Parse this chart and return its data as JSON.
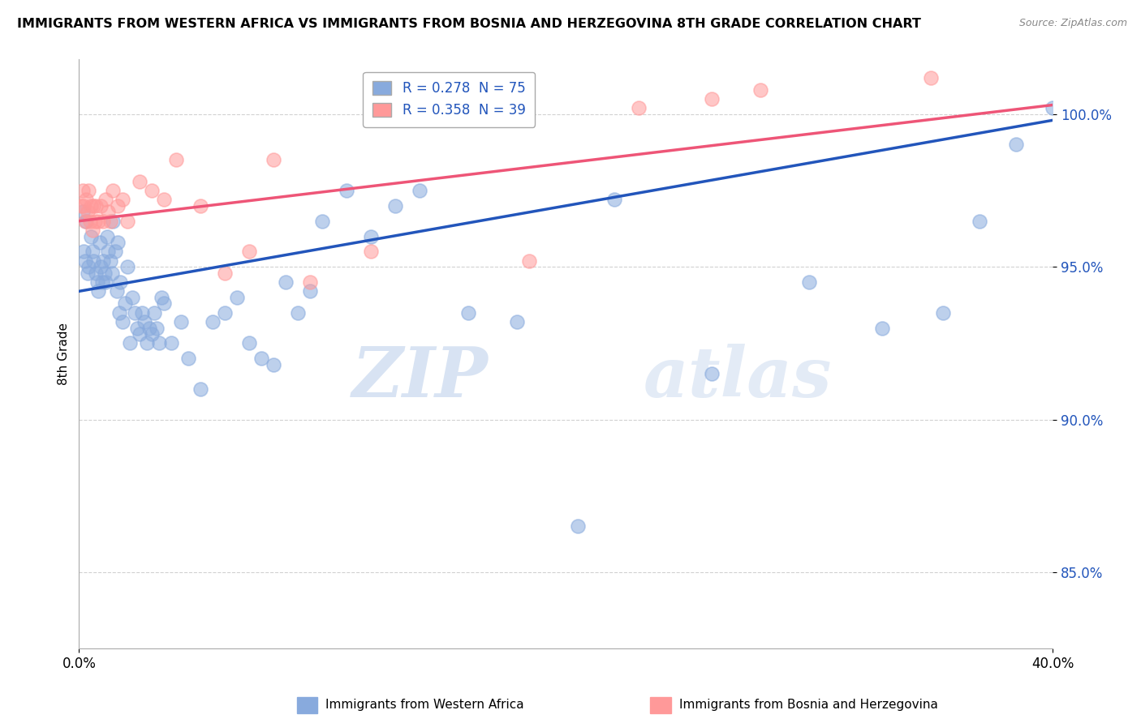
{
  "title": "IMMIGRANTS FROM WESTERN AFRICA VS IMMIGRANTS FROM BOSNIA AND HERZEGOVINA 8TH GRADE CORRELATION CHART",
  "source": "Source: ZipAtlas.com",
  "ylabel": "8th Grade",
  "ytick_labels": [
    "85.0%",
    "90.0%",
    "95.0%",
    "100.0%"
  ],
  "ytick_values": [
    85.0,
    90.0,
    95.0,
    100.0
  ],
  "xlim": [
    0.0,
    40.0
  ],
  "ylim": [
    82.5,
    101.8
  ],
  "blue_R": 0.278,
  "blue_N": 75,
  "pink_R": 0.358,
  "pink_N": 39,
  "blue_color": "#88AADD",
  "pink_color": "#FF9999",
  "blue_line_color": "#2255BB",
  "pink_line_color": "#EE5577",
  "legend_label_blue": "Immigrants from Western Africa",
  "legend_label_pink": "Immigrants from Bosnia and Herzegovina",
  "watermark_zip": "ZIP",
  "watermark_atlas": "atlas",
  "blue_trend_x": [
    0.0,
    40.0
  ],
  "blue_trend_y": [
    94.2,
    99.8
  ],
  "pink_trend_x": [
    0.0,
    40.0
  ],
  "pink_trend_y": [
    96.5,
    100.3
  ],
  "blue_scatter_x": [
    0.15,
    0.2,
    0.25,
    0.3,
    0.35,
    0.4,
    0.5,
    0.55,
    0.6,
    0.7,
    0.75,
    0.8,
    0.85,
    0.9,
    0.95,
    1.0,
    1.05,
    1.1,
    1.15,
    1.2,
    1.3,
    1.35,
    1.4,
    1.5,
    1.55,
    1.6,
    1.65,
    1.7,
    1.8,
    1.9,
    2.0,
    2.1,
    2.2,
    2.3,
    2.4,
    2.5,
    2.6,
    2.7,
    2.8,
    2.9,
    3.0,
    3.1,
    3.2,
    3.3,
    3.4,
    3.5,
    3.8,
    4.2,
    4.5,
    5.0,
    5.5,
    6.0,
    6.5,
    7.0,
    7.5,
    8.0,
    8.5,
    9.0,
    9.5,
    10.0,
    11.0,
    12.0,
    13.0,
    14.0,
    16.0,
    18.0,
    20.5,
    22.0,
    26.0,
    30.0,
    33.0,
    35.5,
    37.0,
    38.5,
    40.0
  ],
  "blue_scatter_y": [
    96.8,
    95.5,
    95.2,
    96.5,
    94.8,
    95.0,
    96.0,
    95.5,
    95.2,
    94.8,
    94.5,
    94.2,
    95.8,
    95.0,
    94.5,
    95.2,
    94.8,
    94.5,
    96.0,
    95.5,
    95.2,
    94.8,
    96.5,
    95.5,
    94.2,
    95.8,
    93.5,
    94.5,
    93.2,
    93.8,
    95.0,
    92.5,
    94.0,
    93.5,
    93.0,
    92.8,
    93.5,
    93.2,
    92.5,
    93.0,
    92.8,
    93.5,
    93.0,
    92.5,
    94.0,
    93.8,
    92.5,
    93.2,
    92.0,
    91.0,
    93.2,
    93.5,
    94.0,
    92.5,
    92.0,
    91.8,
    94.5,
    93.5,
    94.2,
    96.5,
    97.5,
    96.0,
    97.0,
    97.5,
    93.5,
    93.2,
    86.5,
    97.2,
    91.5,
    94.5,
    93.0,
    93.5,
    96.5,
    99.0,
    100.2
  ],
  "pink_scatter_x": [
    0.1,
    0.15,
    0.2,
    0.25,
    0.3,
    0.35,
    0.4,
    0.45,
    0.5,
    0.55,
    0.6,
    0.65,
    0.7,
    0.8,
    0.9,
    1.0,
    1.1,
    1.2,
    1.3,
    1.4,
    1.6,
    1.8,
    2.0,
    2.5,
    3.0,
    3.5,
    4.0,
    5.0,
    6.0,
    7.0,
    8.0,
    9.5,
    12.0,
    16.0,
    18.5,
    23.0,
    26.0,
    28.0,
    35.0
  ],
  "pink_scatter_y": [
    97.0,
    97.5,
    97.0,
    96.5,
    97.2,
    96.8,
    97.5,
    96.5,
    97.0,
    96.2,
    97.0,
    96.5,
    97.0,
    96.5,
    97.0,
    96.5,
    97.2,
    96.8,
    96.5,
    97.5,
    97.0,
    97.2,
    96.5,
    97.8,
    97.5,
    97.2,
    98.5,
    97.0,
    94.8,
    95.5,
    98.5,
    94.5,
    95.5,
    99.8,
    95.2,
    100.2,
    100.5,
    100.8,
    101.2
  ]
}
